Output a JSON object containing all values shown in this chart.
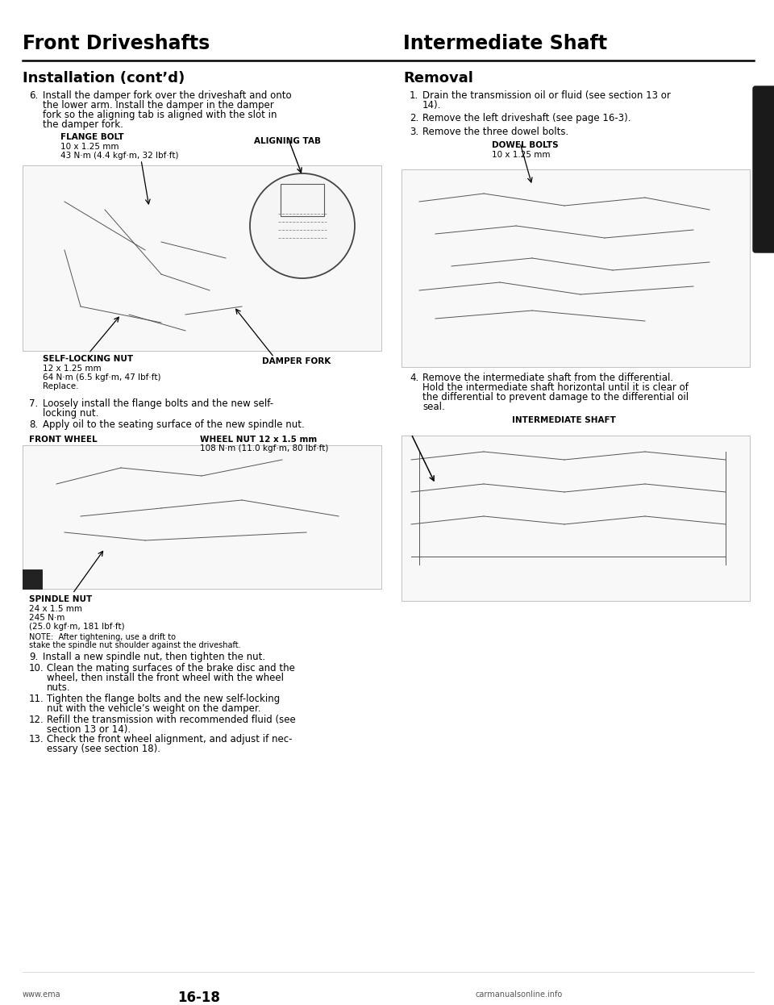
{
  "page_bg": "#ffffff",
  "header_left_title": "Front Driveshafts",
  "header_right_title": "Intermediate Shaft",
  "header_title_fontsize": 17,
  "section_left_title": "Installation (cont’d)",
  "section_right_title": "Removal",
  "section_title_fontsize": 13,
  "text_color": "#000000",
  "body_fontsize": 8.5,
  "label_fontsize": 7.5,
  "small_fontsize": 7.0,
  "footer_left": "www.ema",
  "footer_page": "16-18",
  "footer_right": "carmanualsonline.info",
  "right_tab_color": "#1a1a1a",
  "flange_bolt_label": "FLANGE BOLT",
  "flange_bolt_lines": [
    "10 x 1.25 mm",
    "43 N·m (4.4 kgf·m, 32 lbf·ft)"
  ],
  "aligning_tab_label": "ALIGNING TAB",
  "self_locking_label": "SELF-LOCKING NUT",
  "self_locking_lines": [
    "12 x 1.25 mm",
    "64 N·m (6.5 kgf·m, 47 lbf·ft)",
    "Replace."
  ],
  "damper_fork_label": "DAMPER FORK",
  "front_wheel_label": "FRONT WHEEL",
  "wheel_nut_label": "WHEEL NUT 12 x 1.5 mm",
  "wheel_nut_lines": [
    "108 N·m (11.0 kgf·m, 80 lbf·ft)"
  ],
  "spindle_nut_label": "SPINDLE NUT",
  "spindle_nut_lines": [
    "24 x 1.5 mm",
    "245 N·m",
    "(25.0 kgf·m, 181 lbf·ft)"
  ],
  "note_text": [
    "NOTE:  After tightening, use a drift to",
    "stake the spindle nut shoulder against the driveshaft."
  ],
  "dowel_bolts_label": "DOWEL BOLTS",
  "dowel_bolts_lines": [
    "10 x 1.25 mm"
  ],
  "intermediate_shaft_label": "INTERMEDIATE SHAFT",
  "item6_lines": [
    "Install the damper fork over the driveshaft and onto",
    "the lower arm. Install the damper in the damper",
    "fork so the aligning tab is aligned with the slot in",
    "the damper fork."
  ],
  "item7_lines": [
    "Loosely install the flange bolts and the new self-",
    "locking nut."
  ],
  "item8_line": "Apply oil to the seating surface of the new spindle nut.",
  "item9_line": "Install a new spindle nut, then tighten the nut.",
  "item10_lines": [
    "Clean the mating surfaces of the brake disc and the",
    "wheel, then install the front wheel with the wheel",
    "nuts."
  ],
  "item11_lines": [
    "Tighten the flange bolts and the new self-locking",
    "nut with the vehicle’s weight on the damper."
  ],
  "item12_lines": [
    "Refill the transmission with recommended fluid (see",
    "section 13 or 14)."
  ],
  "item13_lines": [
    "Check the front wheel alignment, and adjust if nec-",
    "essary (see section 18)."
  ],
  "r_item1_lines": [
    "Drain the transmission oil or fluid (see section 13 or",
    "14)."
  ],
  "r_item2_line": "Remove the left driveshaft (see page 16-3).",
  "r_item3_line": "Remove the three dowel bolts.",
  "r_item4_lines": [
    "Remove the intermediate shaft from the differential.",
    "Hold the intermediate shaft horizontal until it is clear of",
    "the differential to prevent damage to the differential oil",
    "seal."
  ]
}
